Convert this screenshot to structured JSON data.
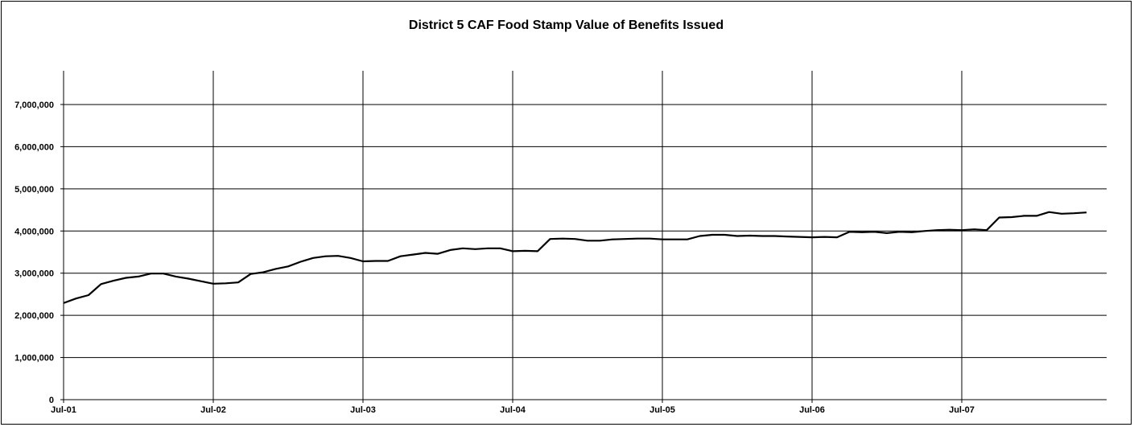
{
  "chart_data": {
    "type": "line",
    "title": "District 5 CAF Food Stamp Value of Benefits Issued",
    "xlabel": "",
    "ylabel": "",
    "ylim": [
      0,
      7800000
    ],
    "y_ticks": [
      0,
      1000000,
      2000000,
      3000000,
      4000000,
      5000000,
      6000000,
      7000000
    ],
    "y_tick_labels": [
      "0",
      "1,000,000",
      "2,000,000",
      "3,000,000",
      "4,000,000",
      "5,000,000",
      "6,000,000",
      "7,000,000"
    ],
    "x_tick_labels": [
      "Jul-01",
      "Jul-02",
      "Jul-03",
      "Jul-04",
      "Jul-05",
      "Jul-06",
      "Jul-07"
    ],
    "x_start": "Jul-01",
    "x_unit": "month",
    "grid": {
      "horizontal": true,
      "vertical": true
    },
    "legend": "none",
    "line_color": "#000000",
    "series": [
      {
        "values": [
          2290000,
          2400000,
          2480000,
          2740000,
          2820000,
          2890000,
          2920000,
          2990000,
          2990000,
          2920000,
          2870000,
          2810000,
          2750000,
          2760000,
          2780000,
          2980000,
          3020000,
          3100000,
          3160000,
          3270000,
          3360000,
          3400000,
          3410000,
          3360000,
          3280000,
          3290000,
          3290000,
          3400000,
          3440000,
          3480000,
          3460000,
          3550000,
          3590000,
          3570000,
          3590000,
          3590000,
          3520000,
          3530000,
          3520000,
          3810000,
          3820000,
          3810000,
          3770000,
          3770000,
          3800000,
          3810000,
          3820000,
          3820000,
          3800000,
          3800000,
          3800000,
          3880000,
          3910000,
          3910000,
          3880000,
          3890000,
          3880000,
          3880000,
          3870000,
          3860000,
          3850000,
          3860000,
          3850000,
          3980000,
          3970000,
          3980000,
          3950000,
          3980000,
          3970000,
          4000000,
          4020000,
          4030000,
          4020000,
          4040000,
          4020000,
          4320000,
          4330000,
          4360000,
          4360000,
          4450000,
          4410000,
          4420000,
          4440000
        ]
      }
    ]
  }
}
